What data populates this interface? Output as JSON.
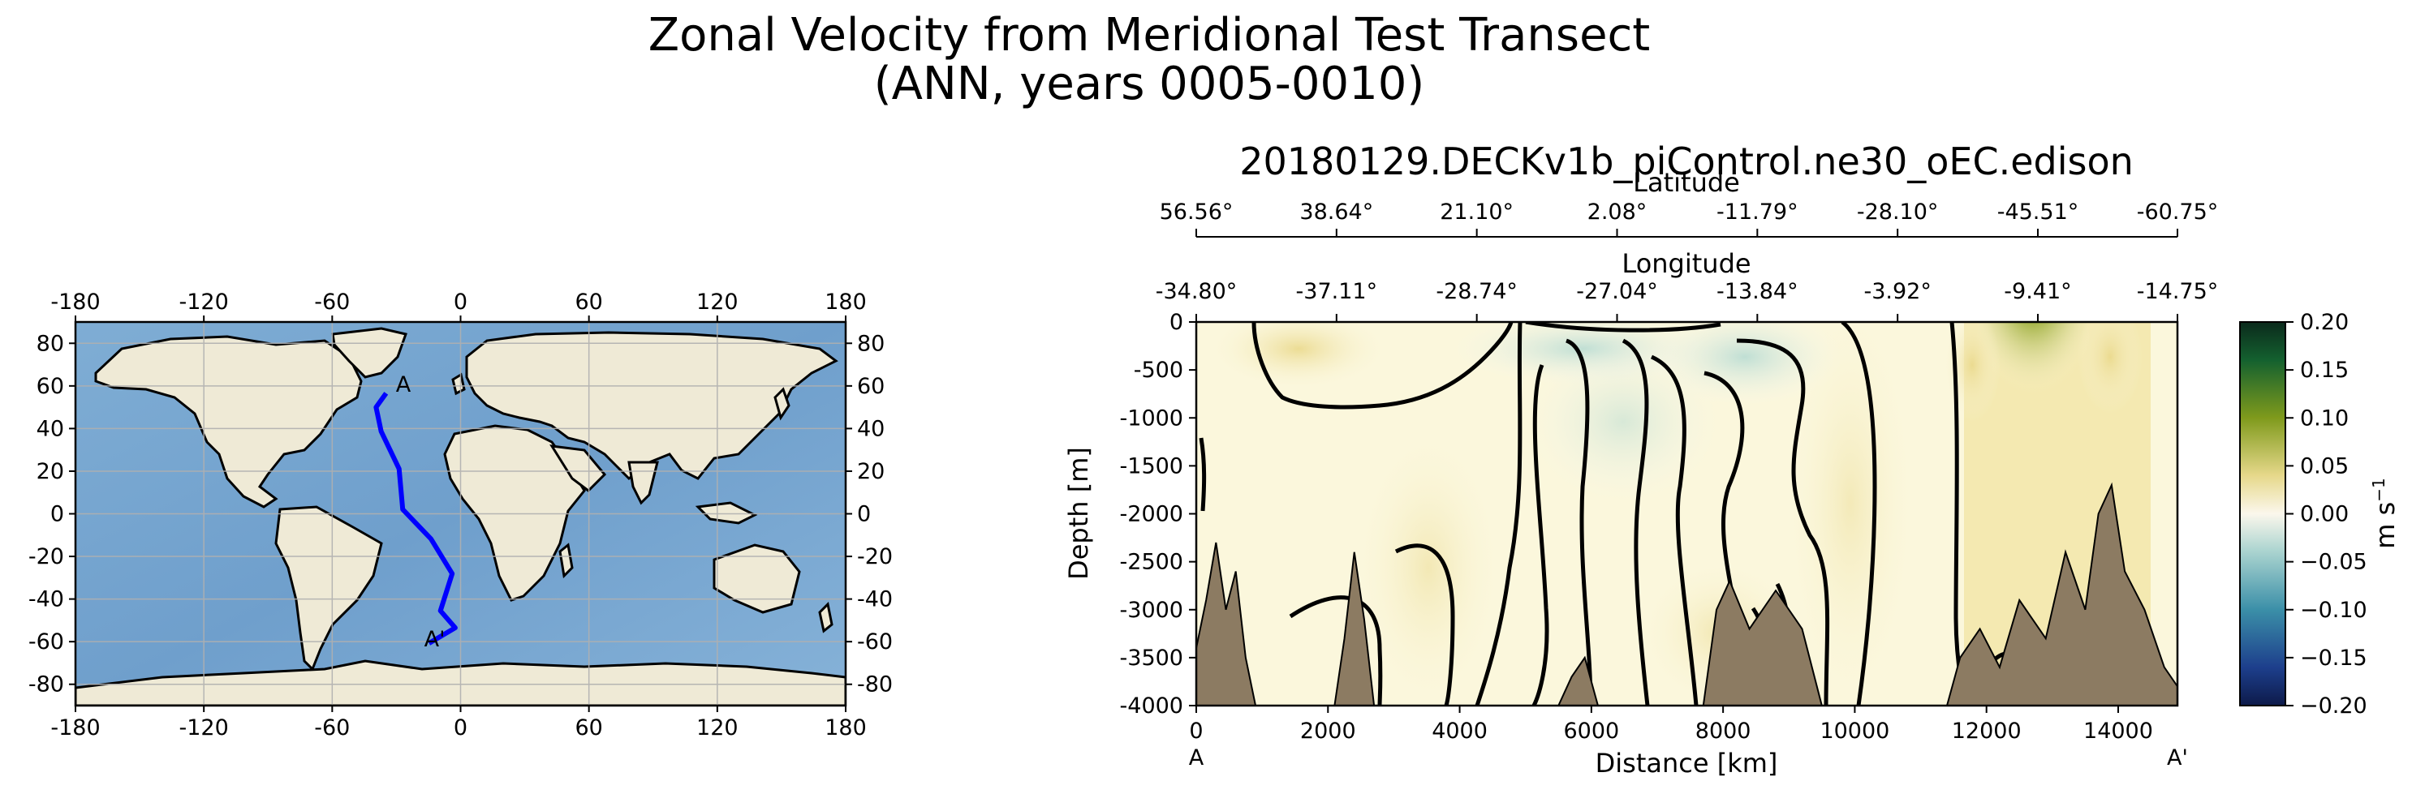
{
  "figure": {
    "suptitle_line1": "Zonal Velocity from Meridional Test Transect",
    "suptitle_line2": "(ANN, years 0005-0010)"
  },
  "chart_data": [
    {
      "type": "map",
      "name": "transect-location-map",
      "xticks": [
        -180,
        -120,
        -60,
        0,
        60,
        120,
        180
      ],
      "yticks": [
        80,
        60,
        40,
        20,
        0,
        -20,
        -40,
        -60,
        -80
      ],
      "xlim": [
        -180,
        180
      ],
      "ylim": [
        -90,
        90
      ],
      "grid": true,
      "transect_label_start": "A",
      "transect_label_end": "A'",
      "transect_color": "#0000ff",
      "transect": [
        {
          "lon": -34.8,
          "lat": 56.56
        },
        {
          "lon": -39.5,
          "lat": 50
        },
        {
          "lon": -37.11,
          "lat": 38.64
        },
        {
          "lon": -28.74,
          "lat": 21.1
        },
        {
          "lon": -27.04,
          "lat": 2.08
        },
        {
          "lon": -13.84,
          "lat": -11.79
        },
        {
          "lon": -3.92,
          "lat": -28.1
        },
        {
          "lon": -9.41,
          "lat": -45.51
        },
        {
          "lon": -2.5,
          "lat": -53.5
        },
        {
          "lon": -14.75,
          "lat": -60.75
        }
      ]
    },
    {
      "type": "heatmap",
      "name": "velocity-section",
      "title": "20180129.DECKv1b_piControl.ne30_oEC.edison",
      "xlabel": "Distance [km]",
      "ylabel": "Depth [m]",
      "xlim": [
        0,
        14900
      ],
      "ylim": [
        -4000,
        0
      ],
      "xticks": [
        0,
        2000,
        4000,
        6000,
        8000,
        10000,
        12000,
        14000
      ],
      "yticks": [
        0,
        -500,
        -1000,
        -1500,
        -2000,
        -2500,
        -3000,
        -3500,
        -4000
      ],
      "x_start_label": "A",
      "x_end_label": "A'",
      "latitude_axis_label": "Latitude",
      "latitude_ticks": [
        "56.56°",
        "38.64°",
        "21.10°",
        "2.08°",
        "-11.79°",
        "-28.10°",
        "-45.51°",
        "-60.75°"
      ],
      "longitude_axis_label": "Longitude",
      "longitude_ticks": [
        "-34.80°",
        "-37.11°",
        "-28.74°",
        "-27.04°",
        "-13.84°",
        "-3.92°",
        "-9.41°",
        "-14.75°"
      ],
      "secondary_tick_positions_km": [
        0,
        2130,
        4260,
        6390,
        8520,
        10650,
        12780,
        14900
      ],
      "colorbar": {
        "label": "m s",
        "label_exponent": "−1",
        "vmin": -0.2,
        "vmax": 0.2,
        "ticks": [
          "0.20",
          "0.15",
          "0.10",
          "0.05",
          "0.00",
          "−0.05",
          "−0.10",
          "−0.15",
          "−0.20"
        ]
      },
      "colors": {
        "bathymetry": "#8c7b62",
        "background": "#fbf7dc"
      },
      "bathymetry_depth": [
        {
          "d": 0,
          "z": -3400
        },
        {
          "d": 150,
          "z": -2900
        },
        {
          "d": 300,
          "z": -2300
        },
        {
          "d": 450,
          "z": -3000
        },
        {
          "d": 600,
          "z": -2600
        },
        {
          "d": 750,
          "z": -3500
        },
        {
          "d": 900,
          "z": -4000
        },
        {
          "d": 2100,
          "z": -4000
        },
        {
          "d": 2250,
          "z": -3300
        },
        {
          "d": 2400,
          "z": -2400
        },
        {
          "d": 2550,
          "z": -3100
        },
        {
          "d": 2700,
          "z": -4000
        },
        {
          "d": 5500,
          "z": -4000
        },
        {
          "d": 5700,
          "z": -3700
        },
        {
          "d": 5900,
          "z": -3500
        },
        {
          "d": 6100,
          "z": -4000
        },
        {
          "d": 7700,
          "z": -4000
        },
        {
          "d": 7900,
          "z": -3000
        },
        {
          "d": 8100,
          "z": -2700
        },
        {
          "d": 8400,
          "z": -3200
        },
        {
          "d": 8800,
          "z": -2800
        },
        {
          "d": 9200,
          "z": -3200
        },
        {
          "d": 9500,
          "z": -4000
        },
        {
          "d": 11400,
          "z": -4000
        },
        {
          "d": 11600,
          "z": -3500
        },
        {
          "d": 11900,
          "z": -3200
        },
        {
          "d": 12200,
          "z": -3600
        },
        {
          "d": 12500,
          "z": -2900
        },
        {
          "d": 12900,
          "z": -3300
        },
        {
          "d": 13200,
          "z": -2400
        },
        {
          "d": 13500,
          "z": -3000
        },
        {
          "d": 13700,
          "z": -2000
        },
        {
          "d": 13900,
          "z": -1700
        },
        {
          "d": 14100,
          "z": -2600
        },
        {
          "d": 14400,
          "z": -3000
        },
        {
          "d": 14700,
          "z": -3600
        },
        {
          "d": 14900,
          "z": -3800
        },
        {
          "d": 14900,
          "z": -4000
        }
      ]
    }
  ]
}
